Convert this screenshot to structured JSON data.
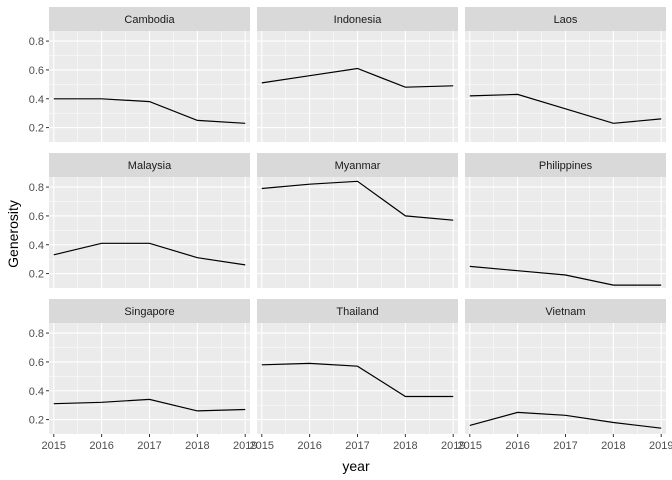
{
  "chart_data": {
    "type": "line",
    "xlabel": "year",
    "ylabel": "Generosity",
    "x": [
      2015,
      2016,
      2017,
      2018,
      2019
    ],
    "x_ticks": [
      "2015",
      "2016",
      "2017",
      "2018",
      "2019"
    ],
    "y_ticks": [
      "0.2",
      "0.4",
      "0.6",
      "0.8"
    ],
    "ylim": [
      0.1,
      0.87
    ],
    "xlim": [
      2014.9,
      2019.1
    ],
    "grid": true,
    "facets": [
      {
        "name": "Cambodia",
        "values": [
          0.4,
          0.4,
          0.38,
          0.25,
          0.23
        ]
      },
      {
        "name": "Indonesia",
        "values": [
          0.51,
          0.56,
          0.61,
          0.48,
          0.49
        ]
      },
      {
        "name": "Laos",
        "values": [
          0.42,
          0.43,
          0.33,
          0.23,
          0.26
        ]
      },
      {
        "name": "Malaysia",
        "values": [
          0.33,
          0.41,
          0.41,
          0.31,
          0.26
        ]
      },
      {
        "name": "Myanmar",
        "values": [
          0.79,
          0.82,
          0.84,
          0.6,
          0.57
        ]
      },
      {
        "name": "Philippines",
        "values": [
          0.25,
          0.22,
          0.19,
          0.12,
          0.12
        ]
      },
      {
        "name": "Singapore",
        "values": [
          0.31,
          0.32,
          0.34,
          0.26,
          0.27
        ]
      },
      {
        "name": "Thailand",
        "values": [
          0.58,
          0.59,
          0.57,
          0.36,
          0.36
        ]
      },
      {
        "name": "Vietnam",
        "values": [
          0.16,
          0.25,
          0.23,
          0.18,
          0.14
        ]
      }
    ],
    "colors": {
      "panel_bg": "#ebebeb",
      "strip_bg": "#d9d9d9",
      "grid_major": "#ffffff",
      "line": "#000000"
    }
  }
}
